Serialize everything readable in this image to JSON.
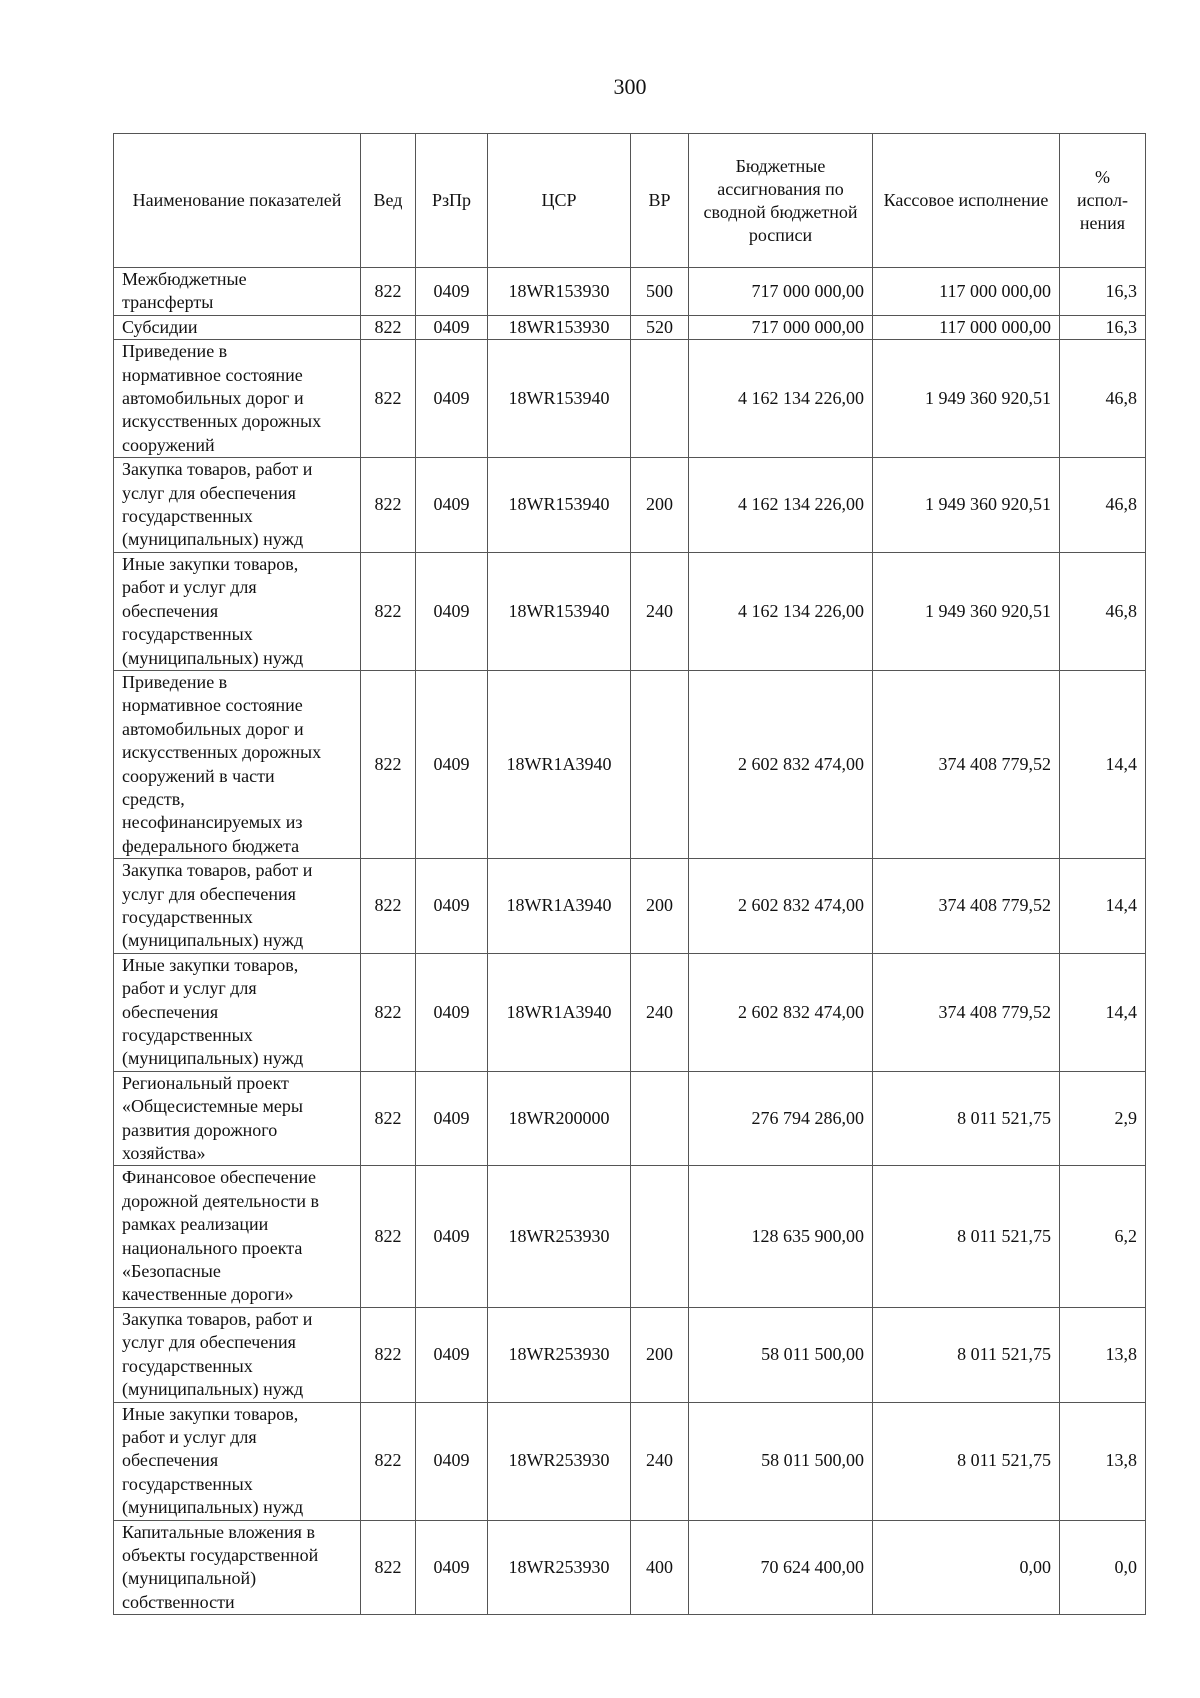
{
  "page_number": "300",
  "table": {
    "headers": [
      "Наименование показателей",
      "Вед",
      "РзПр",
      "ЦСР",
      "ВР",
      "Бюджетные ассигнования по сводной бюджетной росписи",
      "Кассовое исполнение",
      "%\nиспол-\nнения"
    ],
    "rows": [
      {
        "name": "Межбюджетные\nтрансферты",
        "ved": "822",
        "rzpr": "0409",
        "csr": "18WR153930",
        "vr": "500",
        "budget": "717 000 000,00",
        "cash": "117 000 000,00",
        "pct": "16,3"
      },
      {
        "name": "Субсидии",
        "ved": "822",
        "rzpr": "0409",
        "csr": "18WR153930",
        "vr": "520",
        "budget": "717 000 000,00",
        "cash": "117 000 000,00",
        "pct": "16,3"
      },
      {
        "name": "Приведение в\nнормативное состояние\nавтомобильных дорог и\nискусственных дорожных\nсооружений",
        "ved": "822",
        "rzpr": "0409",
        "csr": "18WR153940",
        "vr": "",
        "budget": "4 162 134 226,00",
        "cash": "1 949 360 920,51",
        "pct": "46,8"
      },
      {
        "name": "Закупка товаров, работ и\nуслуг для обеспечения\nгосударственных\n(муниципальных) нужд",
        "ved": "822",
        "rzpr": "0409",
        "csr": "18WR153940",
        "vr": "200",
        "budget": "4 162 134 226,00",
        "cash": "1 949 360 920,51",
        "pct": "46,8"
      },
      {
        "name": "Иные закупки товаров,\nработ и услуг для\nобеспечения\nгосударственных\n(муниципальных) нужд",
        "ved": "822",
        "rzpr": "0409",
        "csr": "18WR153940",
        "vr": "240",
        "budget": "4 162 134 226,00",
        "cash": "1 949 360 920,51",
        "pct": "46,8"
      },
      {
        "name": "Приведение в\nнормативное состояние\nавтомобильных дорог и\nискусственных дорожных\nсооружений в части\nсредств,\nнесофинансируемых из\nфедерального бюджета",
        "ved": "822",
        "rzpr": "0409",
        "csr": "18WR1A3940",
        "vr": "",
        "budget": "2 602 832 474,00",
        "cash": "374 408 779,52",
        "pct": "14,4"
      },
      {
        "name": "Закупка товаров, работ и\nуслуг для обеспечения\nгосударственных\n(муниципальных) нужд",
        "ved": "822",
        "rzpr": "0409",
        "csr": "18WR1A3940",
        "vr": "200",
        "budget": "2 602 832 474,00",
        "cash": "374 408 779,52",
        "pct": "14,4"
      },
      {
        "name": "Иные закупки товаров,\nработ и услуг для\nобеспечения\nгосударственных\n(муниципальных) нужд",
        "ved": "822",
        "rzpr": "0409",
        "csr": "18WR1A3940",
        "vr": "240",
        "budget": "2 602 832 474,00",
        "cash": "374 408 779,52",
        "pct": "14,4"
      },
      {
        "name": "Региональный проект\n«Общесистемные меры\nразвития дорожного\nхозяйства»",
        "ved": "822",
        "rzpr": "0409",
        "csr": "18WR200000",
        "vr": "",
        "budget": "276 794 286,00",
        "cash": "8 011 521,75",
        "pct": "2,9"
      },
      {
        "name": "Финансовое обеспечение\nдорожной деятельности в\nрамках реализации\nнационального проекта\n«Безопасные\nкачественные дороги»",
        "ved": "822",
        "rzpr": "0409",
        "csr": "18WR253930",
        "vr": "",
        "budget": "128 635 900,00",
        "cash": "8 011 521,75",
        "pct": "6,2"
      },
      {
        "name": "Закупка товаров, работ и\nуслуг для обеспечения\nгосударственных\n(муниципальных) нужд",
        "ved": "822",
        "rzpr": "0409",
        "csr": "18WR253930",
        "vr": "200",
        "budget": "58 011 500,00",
        "cash": "8 011 521,75",
        "pct": "13,8"
      },
      {
        "name": "Иные закупки товаров,\nработ и услуг для\nобеспечения\nгосударственных\n(муниципальных) нужд",
        "ved": "822",
        "rzpr": "0409",
        "csr": "18WR253930",
        "vr": "240",
        "budget": "58 011 500,00",
        "cash": "8 011 521,75",
        "pct": "13,8"
      },
      {
        "name": "Капитальные вложения в\nобъекты государственной\n(муниципальной)\nсобственности",
        "ved": "822",
        "rzpr": "0409",
        "csr": "18WR253930",
        "vr": "400",
        "budget": "70 624 400,00",
        "cash": "0,00",
        "pct": "0,0"
      }
    ]
  }
}
